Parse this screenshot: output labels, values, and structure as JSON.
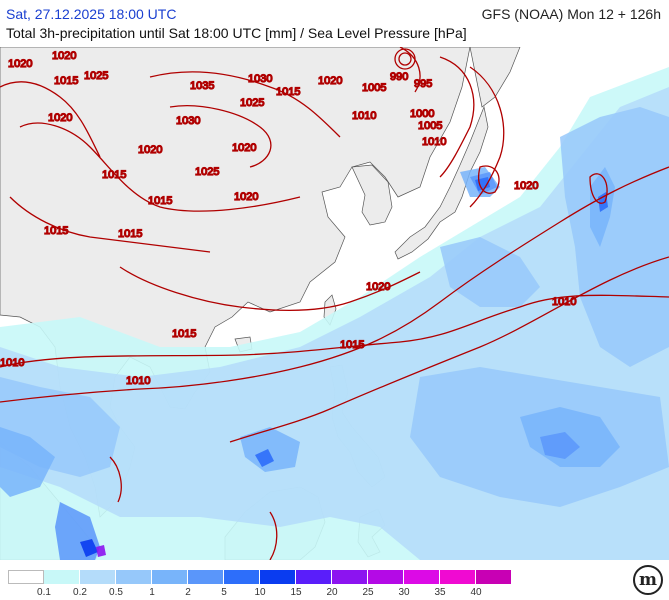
{
  "header": {
    "date": "Sat, 27.12.2025 18:00 UTC",
    "model": "GFS (NOAA) Mon 12 + 126h",
    "description": "Total 3h-precipitation until Sat 18:00 UTC [mm] / Sea Level Pressure [hPa]"
  },
  "isobar_labels": {
    "l1": "1020",
    "l2": "1015",
    "l3": "1025",
    "l4": "1035",
    "l5": "1030",
    "l6": "1020",
    "l7": "990",
    "l8": "995",
    "l9": "1005",
    "l10": "1025",
    "l11": "1015",
    "l12": "1020",
    "l13": "1010",
    "l14": "1000",
    "l15": "1005",
    "l16": "1010",
    "l17": "1030",
    "l18": "1020",
    "l19": "1015",
    "l20": "1025",
    "l21": "1015",
    "l22": "1020",
    "l23": "1020",
    "l24": "1015",
    "l25": "1015",
    "l26": "1020",
    "l27": "1010",
    "l28": "1015",
    "l29": "1015",
    "l30": "1010",
    "l31": "1010",
    "l32": "1020",
    "l33": "1020"
  },
  "legend": {
    "labels": [
      "0.1",
      "0.2",
      "0.5",
      "1",
      "2",
      "5",
      "10",
      "15",
      "20",
      "25",
      "30",
      "35",
      "40"
    ],
    "colors": [
      "#ffffff",
      "#c8f8f8",
      "#b4dcfa",
      "#96c8fa",
      "#78b4fa",
      "#5a96fa",
      "#2d6efa",
      "#0a3cf0",
      "#5a1efa",
      "#8c14f0",
      "#b40ae6",
      "#dc0ae6",
      "#f00ad2",
      "#c800b4"
    ]
  },
  "logo": {
    "glyph": "m"
  }
}
